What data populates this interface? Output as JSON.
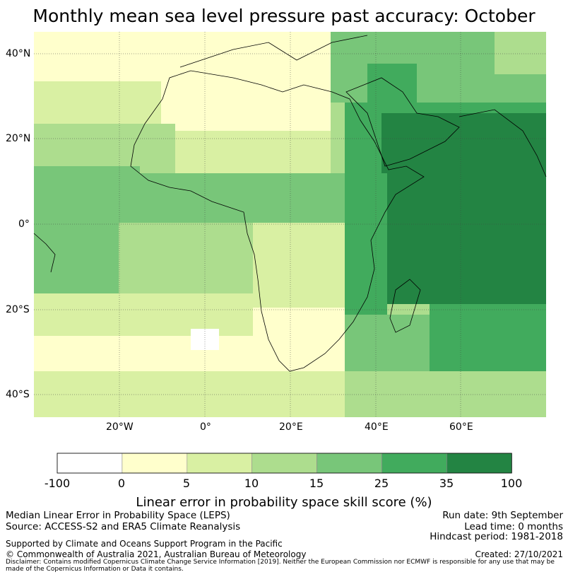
{
  "title": "Monthly mean sea level pressure past accuracy: October",
  "lat_ticks": [
    "40°N",
    "20°N",
    "0°",
    "20°S",
    "40°S"
  ],
  "lon_ticks": [
    "20°W",
    "0°",
    "20°E",
    "40°E",
    "60°E"
  ],
  "colorbar": {
    "labels": [
      "-100",
      "0",
      "5",
      "10",
      "15",
      "25",
      "35",
      "100"
    ],
    "colors": [
      "#ffffff",
      "#ffffcc",
      "#d9f0a3",
      "#addd8e",
      "#78c679",
      "#41ab5d",
      "#238443"
    ],
    "title": "Linear error in probability space skill score (%)"
  },
  "info": {
    "line1": "Median Linear Error in Probability Space (LEPS)",
    "line2": "Source: ACCESS-S2 and ERA5 Climate Reanalysis",
    "support": "Supported by Climate and Oceans Support Program in the Pacific",
    "copyright": "© Commonwealth of Australia 2021, Australian Bureau of Meteorology",
    "disclaimer": "Disclaimer: Contains modified Copernicus Climate Change Service Information [2019]. Neither the European Commission nor ECMWF is responsible for any use that may be made of the Copernicus Information or Data it contains."
  },
  "run_info": {
    "run_date": "Run date: 9th September",
    "lead_time": "Lead time: 0 months",
    "hindcast": "Hindcast period: 1981-2018",
    "created": "Created: 27/10/2021"
  }
}
